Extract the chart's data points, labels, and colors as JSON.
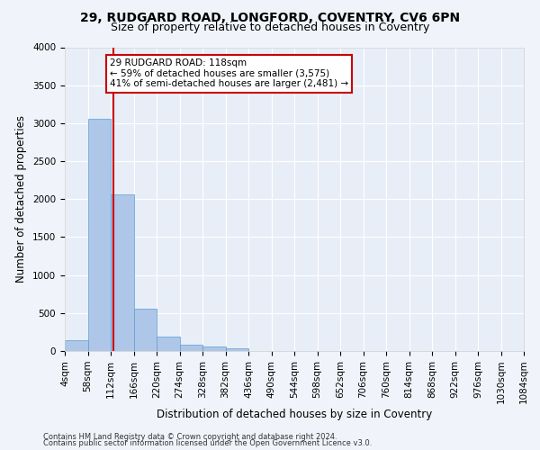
{
  "title_line1": "29, RUDGARD ROAD, LONGFORD, COVENTRY, CV6 6PN",
  "title_line2": "Size of property relative to detached houses in Coventry",
  "xlabel": "Distribution of detached houses by size in Coventry",
  "ylabel": "Number of detached properties",
  "footnote1": "Contains HM Land Registry data © Crown copyright and database right 2024.",
  "footnote2": "Contains public sector information licensed under the Open Government Licence v3.0.",
  "bin_edges": [
    4,
    58,
    112,
    166,
    220,
    274,
    328,
    382,
    436,
    490,
    544,
    598,
    652,
    706,
    760,
    814,
    868,
    922,
    976,
    1030,
    1084
  ],
  "bar_heights": [
    140,
    3060,
    2060,
    560,
    195,
    80,
    55,
    40,
    0,
    0,
    0,
    0,
    0,
    0,
    0,
    0,
    0,
    0,
    0,
    0
  ],
  "bar_color": "#aec6e8",
  "bar_edge_color": "#5a9fd4",
  "property_size": 118,
  "vline_color": "#cc0000",
  "annotation_line1": "29 RUDGARD ROAD: 118sqm",
  "annotation_line2": "← 59% of detached houses are smaller (3,575)",
  "annotation_line3": "41% of semi-detached houses are larger (2,481) →",
  "annotation_box_color": "#cc0000",
  "ylim": [
    0,
    4000
  ],
  "yticks": [
    0,
    500,
    1000,
    1500,
    2000,
    2500,
    3000,
    3500,
    4000
  ],
  "background_color": "#e8eef7",
  "fig_background_color": "#f0f4fa",
  "grid_color": "#ffffff",
  "title_fontsize": 10,
  "subtitle_fontsize": 9,
  "axis_label_fontsize": 8.5,
  "tick_fontsize": 7.5,
  "annotation_fontsize": 7.5
}
